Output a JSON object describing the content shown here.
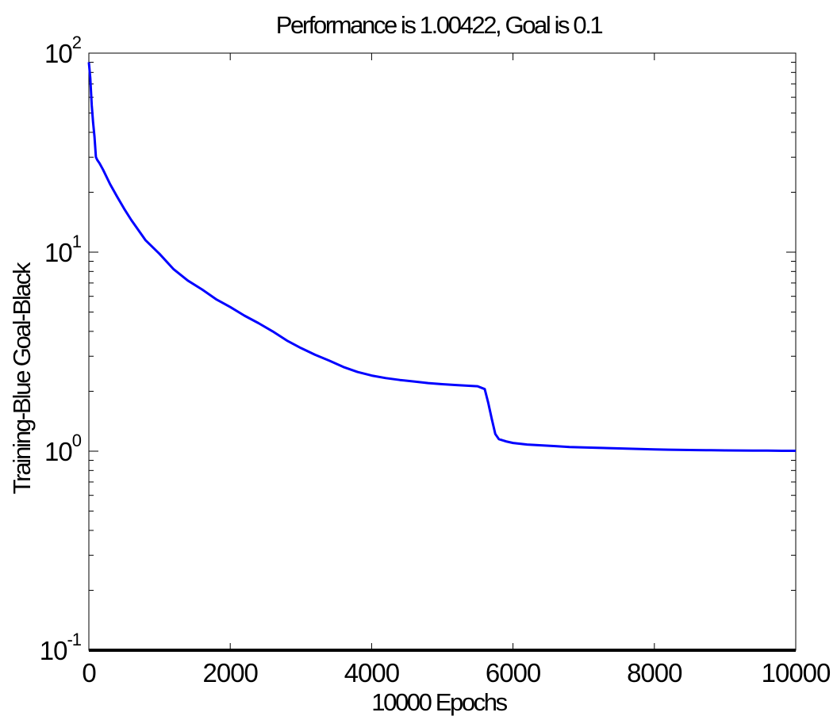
{
  "chart_data": {
    "type": "line",
    "title": "Performance is 1.00422, Goal is 0.1",
    "xlabel": "10000 Epochs",
    "ylabel": "Training-Blue  Goal-Black",
    "xlim": [
      0,
      10000
    ],
    "ylim": [
      0.1,
      100
    ],
    "yscale": "log",
    "grid": false,
    "xticks": [
      0,
      2000,
      4000,
      6000,
      8000,
      10000
    ],
    "xtick_labels": [
      "0",
      "2000",
      "4000",
      "6000",
      "8000",
      "10000"
    ],
    "yticks": [
      {
        "value": 0.1,
        "base": "10",
        "exponent": "-1"
      },
      {
        "value": 1,
        "base": "10",
        "exponent": "0"
      },
      {
        "value": 10,
        "base": "10",
        "exponent": "1"
      },
      {
        "value": 100,
        "base": "10",
        "exponent": "2"
      }
    ],
    "series": [
      {
        "name": "Training",
        "color": "#0000ff",
        "x": [
          0,
          20,
          40,
          60,
          80,
          100,
          120,
          150,
          200,
          300,
          400,
          500,
          600,
          800,
          1000,
          1200,
          1400,
          1600,
          1800,
          2000,
          2200,
          2400,
          2600,
          2800,
          3000,
          3200,
          3400,
          3600,
          3800,
          4000,
          4200,
          4400,
          4600,
          4800,
          5000,
          5200,
          5400,
          5500,
          5600,
          5650,
          5700,
          5750,
          5800,
          5900,
          6000,
          6200,
          6400,
          6600,
          6800,
          7000,
          7200,
          7400,
          7600,
          7800,
          8000,
          8200,
          8400,
          8600,
          8800,
          9000,
          9200,
          9400,
          9600,
          9800,
          10000
        ],
        "y": [
          90,
          75,
          55,
          45,
          38,
          30,
          29,
          28,
          26,
          22,
          19,
          16.5,
          14.5,
          11.5,
          9.8,
          8.2,
          7.2,
          6.5,
          5.8,
          5.3,
          4.8,
          4.4,
          4.0,
          3.6,
          3.3,
          3.05,
          2.85,
          2.65,
          2.5,
          2.4,
          2.33,
          2.28,
          2.24,
          2.2,
          2.17,
          2.15,
          2.13,
          2.12,
          2.05,
          1.75,
          1.45,
          1.22,
          1.15,
          1.12,
          1.1,
          1.08,
          1.07,
          1.06,
          1.05,
          1.045,
          1.04,
          1.035,
          1.03,
          1.025,
          1.02,
          1.018,
          1.015,
          1.013,
          1.011,
          1.009,
          1.008,
          1.007,
          1.006,
          1.005,
          1.00422
        ]
      },
      {
        "name": "Goal",
        "color": "#000000",
        "x": [
          0,
          10000
        ],
        "y": [
          0.1,
          0.1
        ]
      }
    ]
  }
}
